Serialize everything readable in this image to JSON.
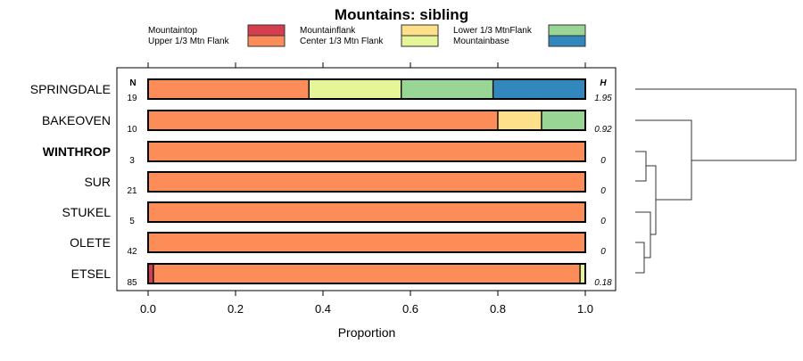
{
  "chart_data": {
    "type": "bar",
    "orientation": "horizontal-stacked",
    "title": "Mountains: sibling",
    "xlabel": "Proportion",
    "xlim": [
      0,
      1
    ],
    "x_ticks": [
      "0.0",
      "0.2",
      "0.4",
      "0.6",
      "0.8",
      "1.0"
    ],
    "n_header": "N",
    "h_header": "H",
    "legend": [
      {
        "name": "Mountaintop",
        "color": "#d53e4f"
      },
      {
        "name": "Upper 1/3 Mtn Flank",
        "color": "#fc8d59"
      },
      {
        "name": "Mountainflank",
        "color": "#fee08b"
      },
      {
        "name": "Center 1/3 Mtn Flank",
        "color": "#e6f598"
      },
      {
        "name": "Lower 1/3 MtnFlank",
        "color": "#99d594"
      },
      {
        "name": "Mountainbase",
        "color": "#3288bd"
      }
    ],
    "categories": [
      "SPRINGDALE",
      "BAKEOVEN",
      "WINTHROP",
      "SUR",
      "STUKEL",
      "OLETE",
      "ETSEL"
    ],
    "bold_category": "WINTHROP",
    "n": [
      "19",
      "10",
      "3",
      "21",
      "5",
      "42",
      "85"
    ],
    "h": [
      "1.95",
      "0.92",
      "0",
      "0",
      "0",
      "0",
      "0.18"
    ],
    "series": [
      {
        "name": "Mountaintop",
        "values": [
          0,
          0,
          0,
          0,
          0,
          0,
          0.012
        ]
      },
      {
        "name": "Upper 1/3 Mtn Flank",
        "values": [
          0.368,
          0.8,
          1,
          1,
          1,
          1,
          0.976
        ]
      },
      {
        "name": "Mountainflank",
        "values": [
          0,
          0.1,
          0,
          0,
          0,
          0,
          0
        ]
      },
      {
        "name": "Center 1/3 Mtn Flank",
        "values": [
          0.211,
          0,
          0,
          0,
          0,
          0,
          0.012
        ]
      },
      {
        "name": "Lower 1/3 MtnFlank",
        "values": [
          0.21,
          0.1,
          0,
          0,
          0,
          0,
          0
        ]
      },
      {
        "name": "Mountainbase",
        "values": [
          0.211,
          0,
          0,
          0,
          0,
          0,
          0
        ]
      }
    ],
    "grid": false,
    "legend_position": "top",
    "dendrogram": true
  }
}
